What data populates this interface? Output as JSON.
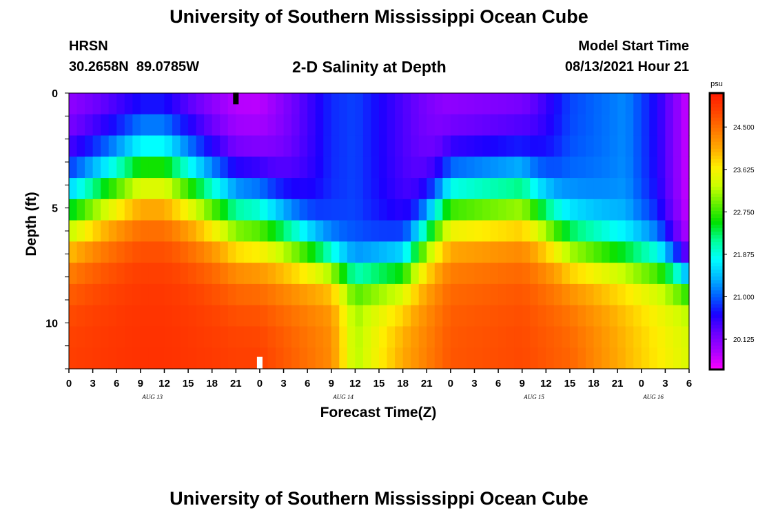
{
  "header": {
    "main_title": "University of Southern Mississippi Ocean Cube",
    "station": "HRSN",
    "coordinates": "30.2658N  89.0785W",
    "plot_title": "2-D Salinity at Depth",
    "model_start_label": "Model Start Time",
    "model_start_value": "08/13/2021 Hour 21"
  },
  "footer": {
    "main_title": "University of Southern Mississippi Ocean Cube"
  },
  "chart_data": {
    "type": "heatmap",
    "title": "2-D Salinity at Depth",
    "xlabel": "Forecast Time(Z)",
    "ylabel": "Depth (ft)",
    "x_ticks": [
      "0",
      "3",
      "6",
      "9",
      "12",
      "15",
      "18",
      "21",
      "0",
      "3",
      "6",
      "9",
      "12",
      "15",
      "18",
      "21",
      "0",
      "3",
      "6",
      "9",
      "12",
      "15",
      "18",
      "21",
      "0",
      "3",
      "6"
    ],
    "date_labels": [
      {
        "label": "AUG 13",
        "tick_index": 3.5
      },
      {
        "label": "AUG 14",
        "tick_index": 11.5
      },
      {
        "label": "AUG 15",
        "tick_index": 19.5
      },
      {
        "label": "AUG 16",
        "tick_index": 24.5
      }
    ],
    "x_range_hours": [
      0,
      78
    ],
    "y_ticks": [
      "0",
      "5",
      "10"
    ],
    "y_range_ft": [
      0,
      12
    ],
    "depth_levels_ft": [
      0,
      1,
      2,
      3,
      4,
      5,
      6,
      7,
      8,
      9,
      10,
      11,
      12
    ],
    "colorbar": {
      "unit": "psu",
      "range": [
        19.5,
        25.2
      ],
      "ticks": [
        "24.500",
        "23.625",
        "22.750",
        "21.875",
        "21.000",
        "20.125"
      ],
      "tick_values": [
        24.5,
        23.625,
        22.75,
        21.875,
        21.0,
        20.125
      ],
      "colors": [
        "#ff00ff",
        "#aa00ff",
        "#6a00ff",
        "#1a00ff",
        "#0060ff",
        "#00b8ff",
        "#00ffff",
        "#00ff99",
        "#00e000",
        "#66f000",
        "#ccff00",
        "#ffee00",
        "#ffaa00",
        "#ff7700",
        "#ff4400",
        "#ff1a00"
      ]
    },
    "salinity_profiles": {
      "note_hours": [
        0,
        9,
        12,
        21,
        24,
        33,
        36,
        42,
        48,
        57,
        63,
        70,
        74,
        78
      ],
      "surface": [
        19.9,
        20.2,
        20.2,
        19.7,
        19.7,
        20.8,
        20.9,
        20.4,
        19.9,
        20.0,
        20.9,
        21.2,
        20.6,
        19.7
      ],
      "thermocline_depth_ft": [
        5.0,
        3.0,
        3.0,
        5.2,
        5.4,
        7.5,
        8.0,
        7.7,
        4.5,
        4.2,
        6.5,
        7.2,
        7.3,
        8.2
      ],
      "bottom": [
        24.9,
        25.0,
        25.0,
        24.9,
        24.9,
        24.3,
        23.2,
        24.1,
        24.7,
        24.8,
        24.6,
        24.0,
        23.7,
        23.4
      ],
      "thermocline_width_ft": [
        1.4,
        1.4,
        1.4,
        1.4,
        1.4,
        0.7,
        0.6,
        0.9,
        1.3,
        1.3,
        1.1,
        0.8,
        0.8,
        0.6
      ]
    },
    "markers": [
      {
        "hour": 21,
        "depth_ft": 0.25,
        "color": "#000000"
      },
      {
        "hour": 24,
        "depth_ft": 11.75,
        "color": "#ffffff"
      }
    ]
  }
}
